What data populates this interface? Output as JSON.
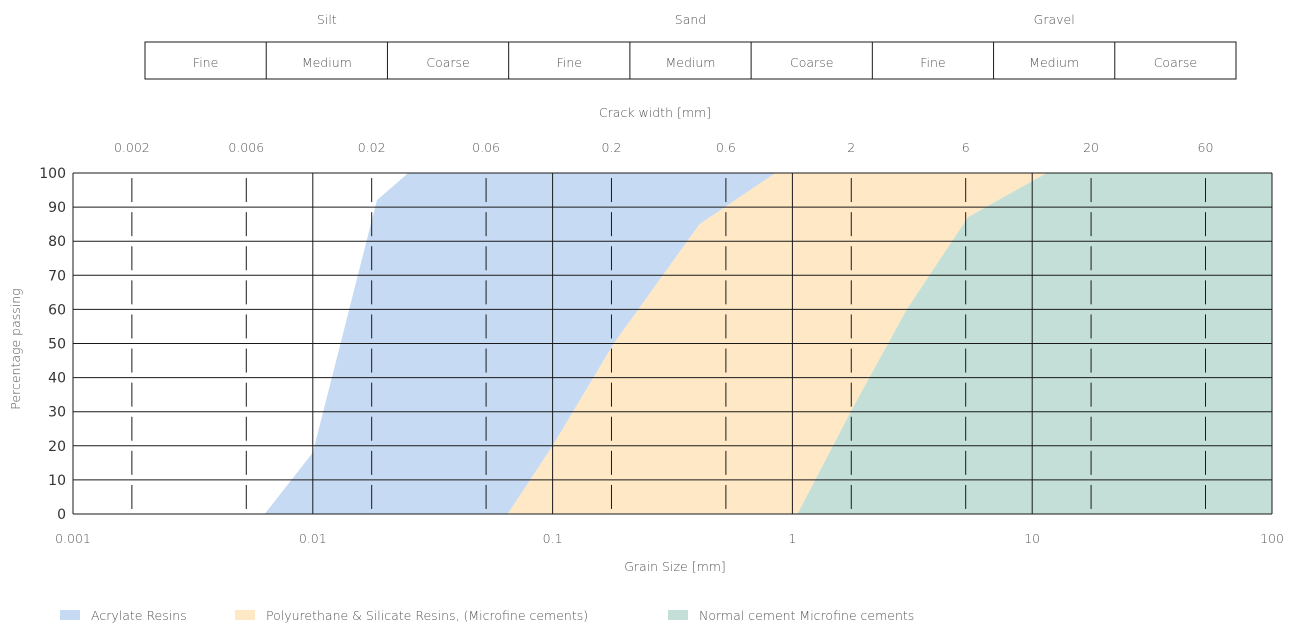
{
  "chart_data": {
    "type": "area",
    "soil_classes": [
      {
        "name": "Silt",
        "subs": [
          "Fine",
          "Medium",
          "Coarse"
        ]
      },
      {
        "name": "Sand",
        "subs": [
          "Fine",
          "Medium",
          "Coarse"
        ]
      },
      {
        "name": "Gravel",
        "subs": [
          "Fine",
          "Medium",
          "Coarse"
        ]
      }
    ],
    "top_axis": {
      "label": "Crack width [mm]",
      "ticks": [
        "0.002",
        "0.006",
        "0.02",
        "0.06",
        "0.2",
        "0.6",
        "2",
        "6",
        "20",
        "60"
      ]
    },
    "x_axis": {
      "label": "Grain Size [mm]",
      "scale": "log",
      "range": [
        0.001,
        100
      ],
      "ticks": [
        "0.001",
        "0.01",
        "0.1",
        "1",
        "10",
        "100"
      ]
    },
    "y_axis": {
      "label": "Percentage passing",
      "range": [
        0,
        100
      ],
      "ticks": [
        "0",
        "10",
        "20",
        "30",
        "40",
        "50",
        "60",
        "70",
        "80",
        "90",
        "100"
      ]
    },
    "grid": true,
    "legend_position": "bottom-left",
    "series": [
      {
        "name": "Acrylate Resins",
        "color": "#c6daf3",
        "left_boundary": [
          [
            0.0063,
            0
          ],
          [
            0.01,
            18
          ],
          [
            0.0185,
            92
          ],
          [
            0.025,
            100
          ]
        ],
        "right_boundary": [
          [
            0.065,
            0
          ],
          [
            0.1,
            20
          ],
          [
            0.18,
            50
          ],
          [
            0.41,
            85
          ],
          [
            0.85,
            100
          ]
        ]
      },
      {
        "name": "Polyurethane & Silicate Resins, (Microfine cements)",
        "color": "#ffe8c6",
        "left_boundary": [
          [
            0.065,
            0
          ],
          [
            0.1,
            20
          ],
          [
            0.18,
            50
          ],
          [
            0.41,
            85
          ],
          [
            0.85,
            100
          ]
        ],
        "right_boundary": [
          [
            1.05,
            0
          ],
          [
            1.75,
            30
          ],
          [
            3.0,
            60
          ],
          [
            5.4,
            87
          ],
          [
            6.4,
            90
          ],
          [
            11.5,
            100
          ]
        ]
      },
      {
        "name": "Normal cement Microfine cements",
        "color": "#c3dfd8",
        "left_boundary": [
          [
            1.05,
            0
          ],
          [
            1.75,
            30
          ],
          [
            3.0,
            60
          ],
          [
            5.4,
            87
          ],
          [
            6.4,
            90
          ],
          [
            11.5,
            100
          ]
        ],
        "right_boundary": [
          [
            100,
            0
          ],
          [
            100,
            100
          ]
        ]
      }
    ]
  }
}
